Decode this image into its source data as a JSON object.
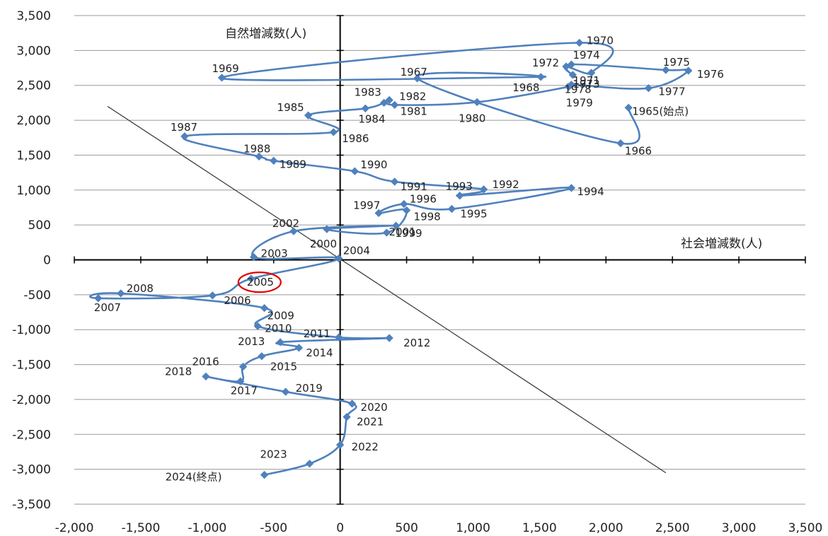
{
  "chart_data": {
    "type": "scatter",
    "connected": true,
    "x_axis_label": "社会増減数(人)",
    "y_axis_label": "自然増減数(人)",
    "xlim": [
      -2000,
      3500
    ],
    "ylim": [
      -3500,
      3500
    ],
    "x_ticks": [
      "-2,000",
      "-1,500",
      "-1,000",
      "-500",
      "0",
      "500",
      "1,000",
      "1,500",
      "2,000",
      "2,500",
      "3,000",
      "3,500"
    ],
    "y_ticks": [
      "3,500",
      "3,000",
      "2,500",
      "2,000",
      "1,500",
      "1,000",
      "500",
      "0",
      "-500",
      "-1,000",
      "-1,500",
      "-2,000",
      "-2,500",
      "-3,000",
      "-3,500"
    ],
    "grid": "horizontal",
    "series_color": "#4f81bd",
    "reference_line": {
      "from": [
        -1750,
        2200
      ],
      "to": [
        2450,
        -3050
      ]
    },
    "highlight": {
      "label": "2005",
      "color": "#e00000"
    },
    "points": [
      {
        "label": "1965(始点)",
        "x": 2170,
        "y": 2180
      },
      {
        "label": "1966",
        "x": 2110,
        "y": 1670
      },
      {
        "label": "1967",
        "x": 580,
        "y": 2600
      },
      {
        "label": "1968",
        "x": 1510,
        "y": 2620
      },
      {
        "label": "1969",
        "x": -890,
        "y": 2610
      },
      {
        "label": "1970",
        "x": 1800,
        "y": 3110
      },
      {
        "label": "1971",
        "x": 1890,
        "y": 2680
      },
      {
        "label": "1972",
        "x": 1700,
        "y": 2770
      },
      {
        "label": "1973",
        "x": 1750,
        "y": 2650
      },
      {
        "label": "1974",
        "x": 1740,
        "y": 2800
      },
      {
        "label": "1975",
        "x": 2450,
        "y": 2720
      },
      {
        "label": "1976",
        "x": 2620,
        "y": 2710
      },
      {
        "label": "1977",
        "x": 2320,
        "y": 2460
      },
      {
        "label": "1978",
        "x": 1740,
        "y": 2510
      },
      {
        "label": "1979",
        "x": 1720,
        "y": 2480
      },
      {
        "label": "1980",
        "x": 1030,
        "y": 2260
      },
      {
        "label": "1981",
        "x": 410,
        "y": 2220
      },
      {
        "label": "1982",
        "x": 370,
        "y": 2290
      },
      {
        "label": "1983",
        "x": 330,
        "y": 2250
      },
      {
        "label": "1984",
        "x": 190,
        "y": 2170
      },
      {
        "label": "1985",
        "x": -240,
        "y": 2070
      },
      {
        "label": "1986",
        "x": -50,
        "y": 1830
      },
      {
        "label": "1987",
        "x": -1170,
        "y": 1770
      },
      {
        "label": "1988",
        "x": -610,
        "y": 1480
      },
      {
        "label": "1989",
        "x": -500,
        "y": 1420
      },
      {
        "label": "1990",
        "x": 110,
        "y": 1270
      },
      {
        "label": "1991",
        "x": 410,
        "y": 1120
      },
      {
        "label": "1992",
        "x": 1080,
        "y": 1010
      },
      {
        "label": "1993",
        "x": 900,
        "y": 920
      },
      {
        "label": "1994",
        "x": 1740,
        "y": 1030
      },
      {
        "label": "1995",
        "x": 840,
        "y": 730
      },
      {
        "label": "1996",
        "x": 480,
        "y": 800
      },
      {
        "label": "1997",
        "x": 290,
        "y": 670
      },
      {
        "label": "1998",
        "x": 500,
        "y": 710
      },
      {
        "label": "1999",
        "x": 350,
        "y": 390
      },
      {
        "label": "2000",
        "x": -100,
        "y": 440
      },
      {
        "label": "2001",
        "x": 420,
        "y": 490
      },
      {
        "label": "2002",
        "x": -350,
        "y": 410
      },
      {
        "label": "2003",
        "x": -650,
        "y": 40
      },
      {
        "label": "2004",
        "x": -10,
        "y": 20
      },
      {
        "label": "2005",
        "x": -670,
        "y": -270
      },
      {
        "label": "2006",
        "x": -960,
        "y": -510
      },
      {
        "label": "2007",
        "x": -1820,
        "y": -550
      },
      {
        "label": "2008",
        "x": -1650,
        "y": -480
      },
      {
        "label": "2009",
        "x": -570,
        "y": -690
      },
      {
        "label": "2010",
        "x": -620,
        "y": -950
      },
      {
        "label": "2011",
        "x": -10,
        "y": -1110
      },
      {
        "label": "2012",
        "x": 370,
        "y": -1120
      },
      {
        "label": "2013",
        "x": -450,
        "y": -1180
      },
      {
        "label": "2014",
        "x": -310,
        "y": -1260
      },
      {
        "label": "2015",
        "x": -590,
        "y": -1380
      },
      {
        "label": "2016",
        "x": -730,
        "y": -1530
      },
      {
        "label": "2017",
        "x": -750,
        "y": -1740
      },
      {
        "label": "2018",
        "x": -1010,
        "y": -1670
      },
      {
        "label": "2019",
        "x": -410,
        "y": -1890
      },
      {
        "label": "2020",
        "x": 90,
        "y": -2060
      },
      {
        "label": "2021",
        "x": 50,
        "y": -2250
      },
      {
        "label": "2022",
        "x": 0,
        "y": -2650
      },
      {
        "label": "2023",
        "x": -230,
        "y": -2920
      },
      {
        "label": "2024(終点)",
        "x": -570,
        "y": -3080
      }
    ]
  }
}
